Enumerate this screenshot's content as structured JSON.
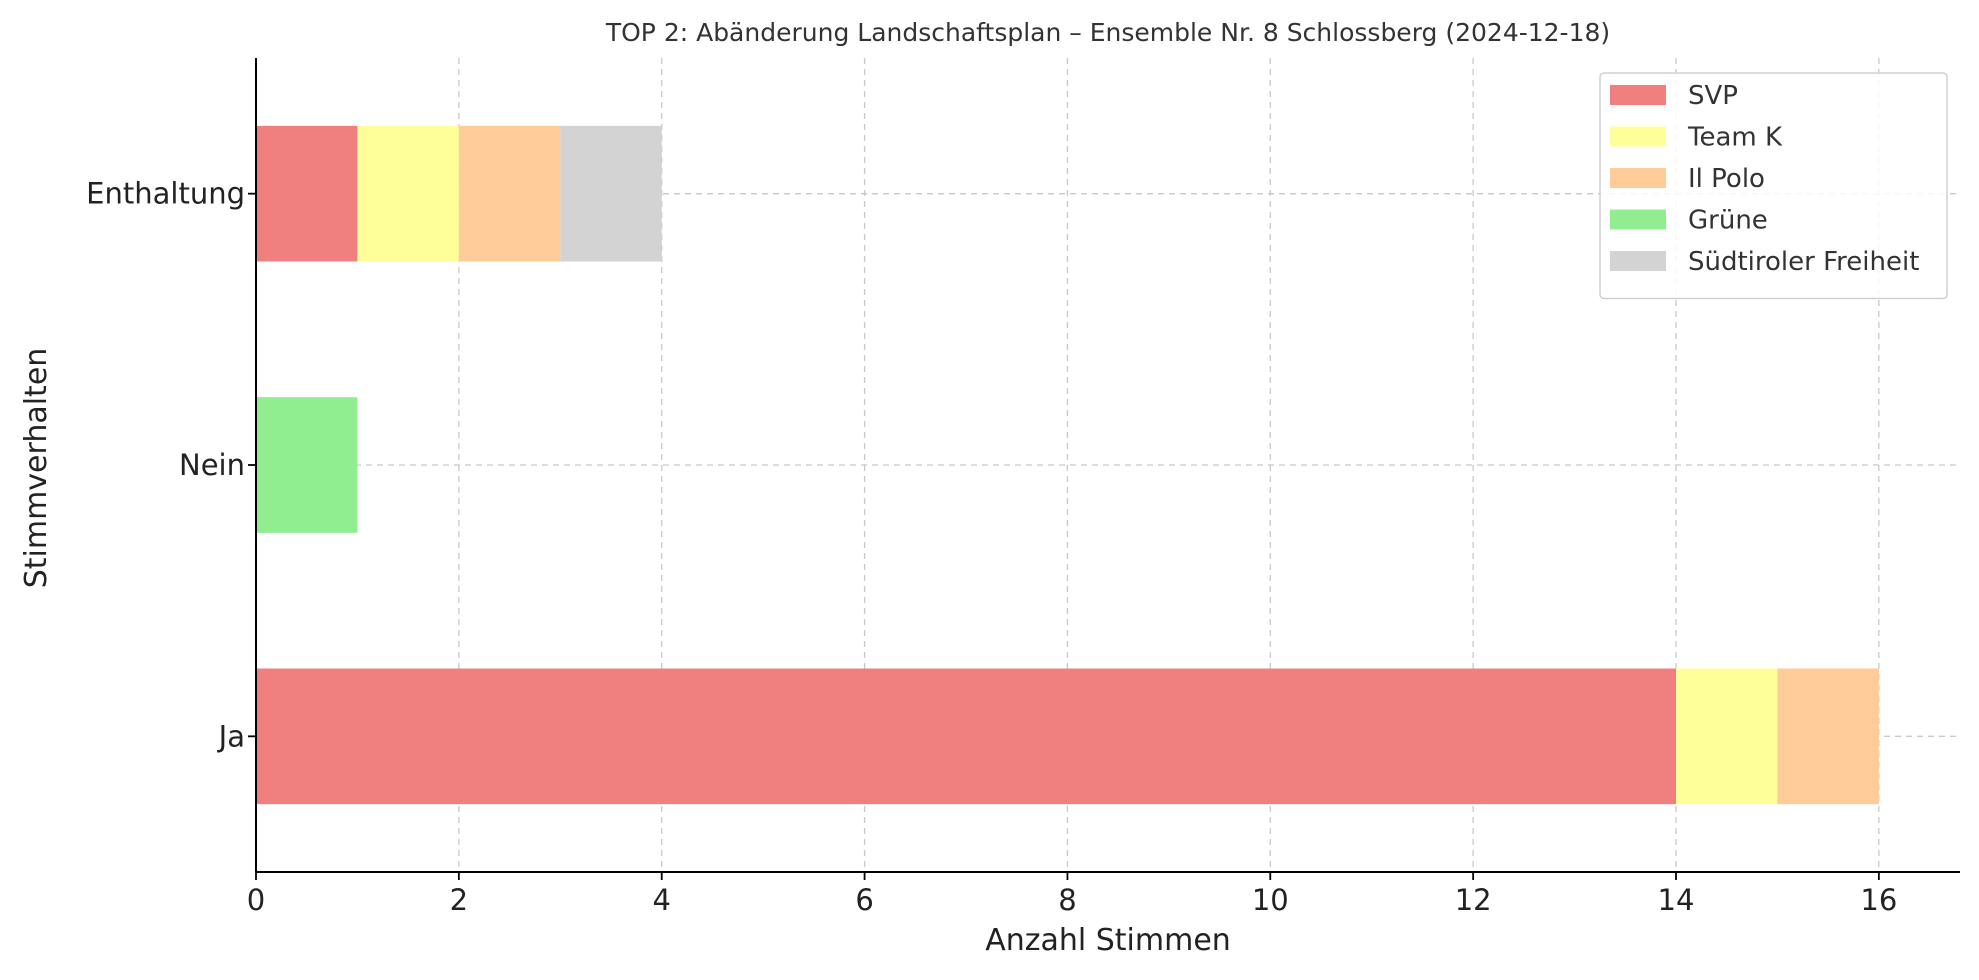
{
  "chart_data": {
    "type": "bar",
    "orientation": "horizontal",
    "stacked": true,
    "title": "TOP 2: Abänderung Landschaftsplan – Ensemble Nr. 8 Schlossberg (2024-12-18)",
    "xlabel": "Anzahl Stimmen",
    "ylabel": "Stimmverhalten",
    "categories": [
      "Ja",
      "Nein",
      "Enthaltung"
    ],
    "xlim": [
      0,
      16.8
    ],
    "xticks": [
      "0",
      "2",
      "4",
      "6",
      "8",
      "10",
      "12",
      "14",
      "16"
    ],
    "grid": true,
    "legend_position": "top-right",
    "series": [
      {
        "name": "SVP",
        "color": "#f08080",
        "values": [
          14,
          0,
          1
        ]
      },
      {
        "name": "Team K",
        "color": "#ffff99",
        "values": [
          1,
          0,
          1
        ]
      },
      {
        "name": "Il Polo",
        "color": "#ffcc99",
        "values": [
          1,
          0,
          1
        ]
      },
      {
        "name": "Grüne",
        "color": "#90ee90",
        "values": [
          0,
          1,
          0
        ]
      },
      {
        "name": "Südtiroler Freiheit",
        "color": "#d3d3d3",
        "values": [
          0,
          0,
          1
        ]
      }
    ]
  }
}
